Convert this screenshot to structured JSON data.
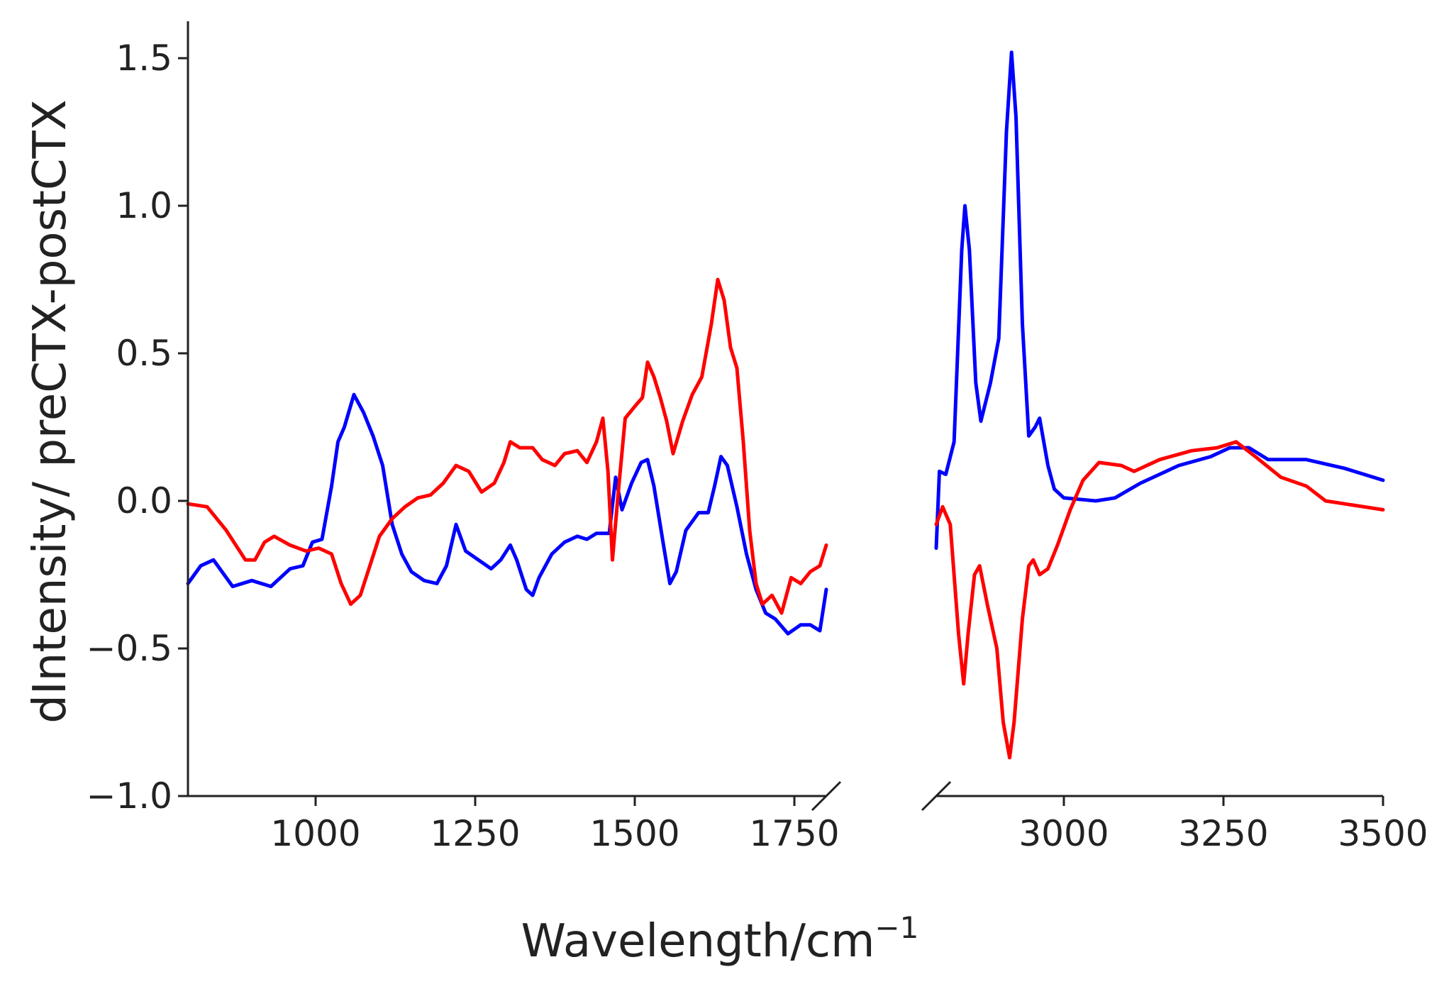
{
  "chart_data": {
    "type": "line",
    "xlabel": "Wavelength/cm",
    "xlabel_superscript": "−1",
    "ylabel": "dIntensity/ preCTX-postCTX",
    "ylim": [
      -1.0,
      1.6
    ],
    "yticks": [
      {
        "value": -1.0,
        "label": "−1.0"
      },
      {
        "value": -0.5,
        "label": "−0.5"
      },
      {
        "value": 0.0,
        "label": "0.0"
      },
      {
        "value": 0.5,
        "label": "0.5"
      },
      {
        "value": 1.0,
        "label": "1.0"
      },
      {
        "value": 1.5,
        "label": "1.5"
      }
    ],
    "broken_x_axis": true,
    "x_segments": [
      {
        "xlim": [
          800,
          1800
        ],
        "ticks": [
          1000,
          1250,
          1500,
          1750
        ]
      },
      {
        "xlim": [
          2800,
          3500
        ],
        "ticks": [
          3000,
          3250,
          3500
        ]
      }
    ],
    "grid": false,
    "legend": "none",
    "series": [
      {
        "color": "#0000ff",
        "segments": [
          [
            [
              800,
              -0.28
            ],
            [
              820,
              -0.22
            ],
            [
              840,
              -0.2
            ],
            [
              870,
              -0.29
            ],
            [
              900,
              -0.27
            ],
            [
              930,
              -0.29
            ],
            [
              960,
              -0.23
            ],
            [
              980,
              -0.22
            ],
            [
              995,
              -0.14
            ],
            [
              1010,
              -0.13
            ],
            [
              1025,
              0.05
            ],
            [
              1035,
              0.2
            ],
            [
              1045,
              0.25
            ],
            [
              1060,
              0.36
            ],
            [
              1075,
              0.3
            ],
            [
              1090,
              0.22
            ],
            [
              1105,
              0.12
            ],
            [
              1120,
              -0.08
            ],
            [
              1135,
              -0.18
            ],
            [
              1150,
              -0.24
            ],
            [
              1170,
              -0.27
            ],
            [
              1190,
              -0.28
            ],
            [
              1205,
              -0.22
            ],
            [
              1220,
              -0.08
            ],
            [
              1235,
              -0.17
            ],
            [
              1255,
              -0.2
            ],
            [
              1275,
              -0.23
            ],
            [
              1290,
              -0.2
            ],
            [
              1305,
              -0.15
            ],
            [
              1315,
              -0.2
            ],
            [
              1330,
              -0.3
            ],
            [
              1340,
              -0.32
            ],
            [
              1350,
              -0.26
            ],
            [
              1370,
              -0.18
            ],
            [
              1390,
              -0.14
            ],
            [
              1410,
              -0.12
            ],
            [
              1425,
              -0.13
            ],
            [
              1440,
              -0.11
            ],
            [
              1460,
              -0.11
            ],
            [
              1470,
              0.08
            ],
            [
              1480,
              -0.03
            ],
            [
              1495,
              0.06
            ],
            [
              1510,
              0.13
            ],
            [
              1520,
              0.14
            ],
            [
              1530,
              0.05
            ],
            [
              1545,
              -0.15
            ],
            [
              1555,
              -0.28
            ],
            [
              1565,
              -0.24
            ],
            [
              1580,
              -0.1
            ],
            [
              1600,
              -0.04
            ],
            [
              1615,
              -0.04
            ],
            [
              1625,
              0.05
            ],
            [
              1635,
              0.15
            ],
            [
              1645,
              0.12
            ],
            [
              1660,
              -0.02
            ],
            [
              1675,
              -0.18
            ],
            [
              1690,
              -0.3
            ],
            [
              1705,
              -0.38
            ],
            [
              1720,
              -0.4
            ],
            [
              1740,
              -0.45
            ],
            [
              1760,
              -0.42
            ],
            [
              1775,
              -0.42
            ],
            [
              1790,
              -0.44
            ],
            [
              1800,
              -0.3
            ]
          ],
          [
            [
              2800,
              -0.16
            ],
            [
              2805,
              0.1
            ],
            [
              2815,
              0.09
            ],
            [
              2828,
              0.2
            ],
            [
              2840,
              0.85
            ],
            [
              2845,
              1.0
            ],
            [
              2852,
              0.85
            ],
            [
              2862,
              0.4
            ],
            [
              2870,
              0.27
            ],
            [
              2885,
              0.4
            ],
            [
              2898,
              0.55
            ],
            [
              2910,
              1.25
            ],
            [
              2918,
              1.52
            ],
            [
              2925,
              1.3
            ],
            [
              2935,
              0.6
            ],
            [
              2945,
              0.22
            ],
            [
              2955,
              0.25
            ],
            [
              2962,
              0.28
            ],
            [
              2975,
              0.12
            ],
            [
              2985,
              0.04
            ],
            [
              3000,
              0.01
            ],
            [
              3050,
              0.0
            ],
            [
              3080,
              0.01
            ],
            [
              3120,
              0.06
            ],
            [
              3180,
              0.12
            ],
            [
              3230,
              0.15
            ],
            [
              3260,
              0.18
            ],
            [
              3290,
              0.18
            ],
            [
              3320,
              0.14
            ],
            [
              3380,
              0.14
            ],
            [
              3440,
              0.11
            ],
            [
              3500,
              0.07
            ]
          ]
        ]
      },
      {
        "color": "#ff0000",
        "segments": [
          [
            [
              800,
              -0.01
            ],
            [
              830,
              -0.02
            ],
            [
              860,
              -0.1
            ],
            [
              890,
              -0.2
            ],
            [
              905,
              -0.2
            ],
            [
              920,
              -0.14
            ],
            [
              935,
              -0.12
            ],
            [
              960,
              -0.15
            ],
            [
              985,
              -0.17
            ],
            [
              1005,
              -0.16
            ],
            [
              1025,
              -0.18
            ],
            [
              1040,
              -0.28
            ],
            [
              1055,
              -0.35
            ],
            [
              1070,
              -0.32
            ],
            [
              1085,
              -0.22
            ],
            [
              1100,
              -0.12
            ],
            [
              1120,
              -0.06
            ],
            [
              1140,
              -0.02
            ],
            [
              1160,
              0.01
            ],
            [
              1180,
              0.02
            ],
            [
              1200,
              0.06
            ],
            [
              1220,
              0.12
            ],
            [
              1240,
              0.1
            ],
            [
              1260,
              0.03
            ],
            [
              1280,
              0.06
            ],
            [
              1295,
              0.13
            ],
            [
              1305,
              0.2
            ],
            [
              1320,
              0.18
            ],
            [
              1340,
              0.18
            ],
            [
              1355,
              0.14
            ],
            [
              1375,
              0.12
            ],
            [
              1390,
              0.16
            ],
            [
              1410,
              0.17
            ],
            [
              1425,
              0.13
            ],
            [
              1440,
              0.2
            ],
            [
              1450,
              0.28
            ],
            [
              1458,
              0.1
            ],
            [
              1465,
              -0.2
            ],
            [
              1475,
              0.05
            ],
            [
              1485,
              0.28
            ],
            [
              1500,
              0.32
            ],
            [
              1512,
              0.35
            ],
            [
              1520,
              0.47
            ],
            [
              1530,
              0.42
            ],
            [
              1540,
              0.35
            ],
            [
              1550,
              0.27
            ],
            [
              1560,
              0.16
            ],
            [
              1575,
              0.27
            ],
            [
              1590,
              0.36
            ],
            [
              1605,
              0.42
            ],
            [
              1620,
              0.6
            ],
            [
              1630,
              0.75
            ],
            [
              1640,
              0.68
            ],
            [
              1650,
              0.52
            ],
            [
              1660,
              0.45
            ],
            [
              1670,
              0.2
            ],
            [
              1680,
              -0.1
            ],
            [
              1690,
              -0.28
            ],
            [
              1700,
              -0.35
            ],
            [
              1715,
              -0.32
            ],
            [
              1730,
              -0.38
            ],
            [
              1745,
              -0.26
            ],
            [
              1760,
              -0.28
            ],
            [
              1775,
              -0.24
            ],
            [
              1790,
              -0.22
            ],
            [
              1800,
              -0.15
            ]
          ],
          [
            [
              2800,
              -0.08
            ],
            [
              2810,
              -0.02
            ],
            [
              2822,
              -0.08
            ],
            [
              2835,
              -0.45
            ],
            [
              2843,
              -0.62
            ],
            [
              2850,
              -0.45
            ],
            [
              2860,
              -0.25
            ],
            [
              2868,
              -0.22
            ],
            [
              2880,
              -0.35
            ],
            [
              2895,
              -0.5
            ],
            [
              2905,
              -0.75
            ],
            [
              2915,
              -0.87
            ],
            [
              2922,
              -0.75
            ],
            [
              2935,
              -0.4
            ],
            [
              2945,
              -0.22
            ],
            [
              2952,
              -0.2
            ],
            [
              2962,
              -0.25
            ],
            [
              2975,
              -0.23
            ],
            [
              2990,
              -0.15
            ],
            [
              3010,
              -0.03
            ],
            [
              3030,
              0.07
            ],
            [
              3055,
              0.13
            ],
            [
              3090,
              0.12
            ],
            [
              3110,
              0.1
            ],
            [
              3150,
              0.14
            ],
            [
              3200,
              0.17
            ],
            [
              3240,
              0.18
            ],
            [
              3270,
              0.2
            ],
            [
              3300,
              0.15
            ],
            [
              3340,
              0.08
            ],
            [
              3380,
              0.05
            ],
            [
              3410,
              0.0
            ],
            [
              3440,
              -0.01
            ],
            [
              3470,
              -0.02
            ],
            [
              3500,
              -0.03
            ]
          ]
        ]
      }
    ]
  }
}
